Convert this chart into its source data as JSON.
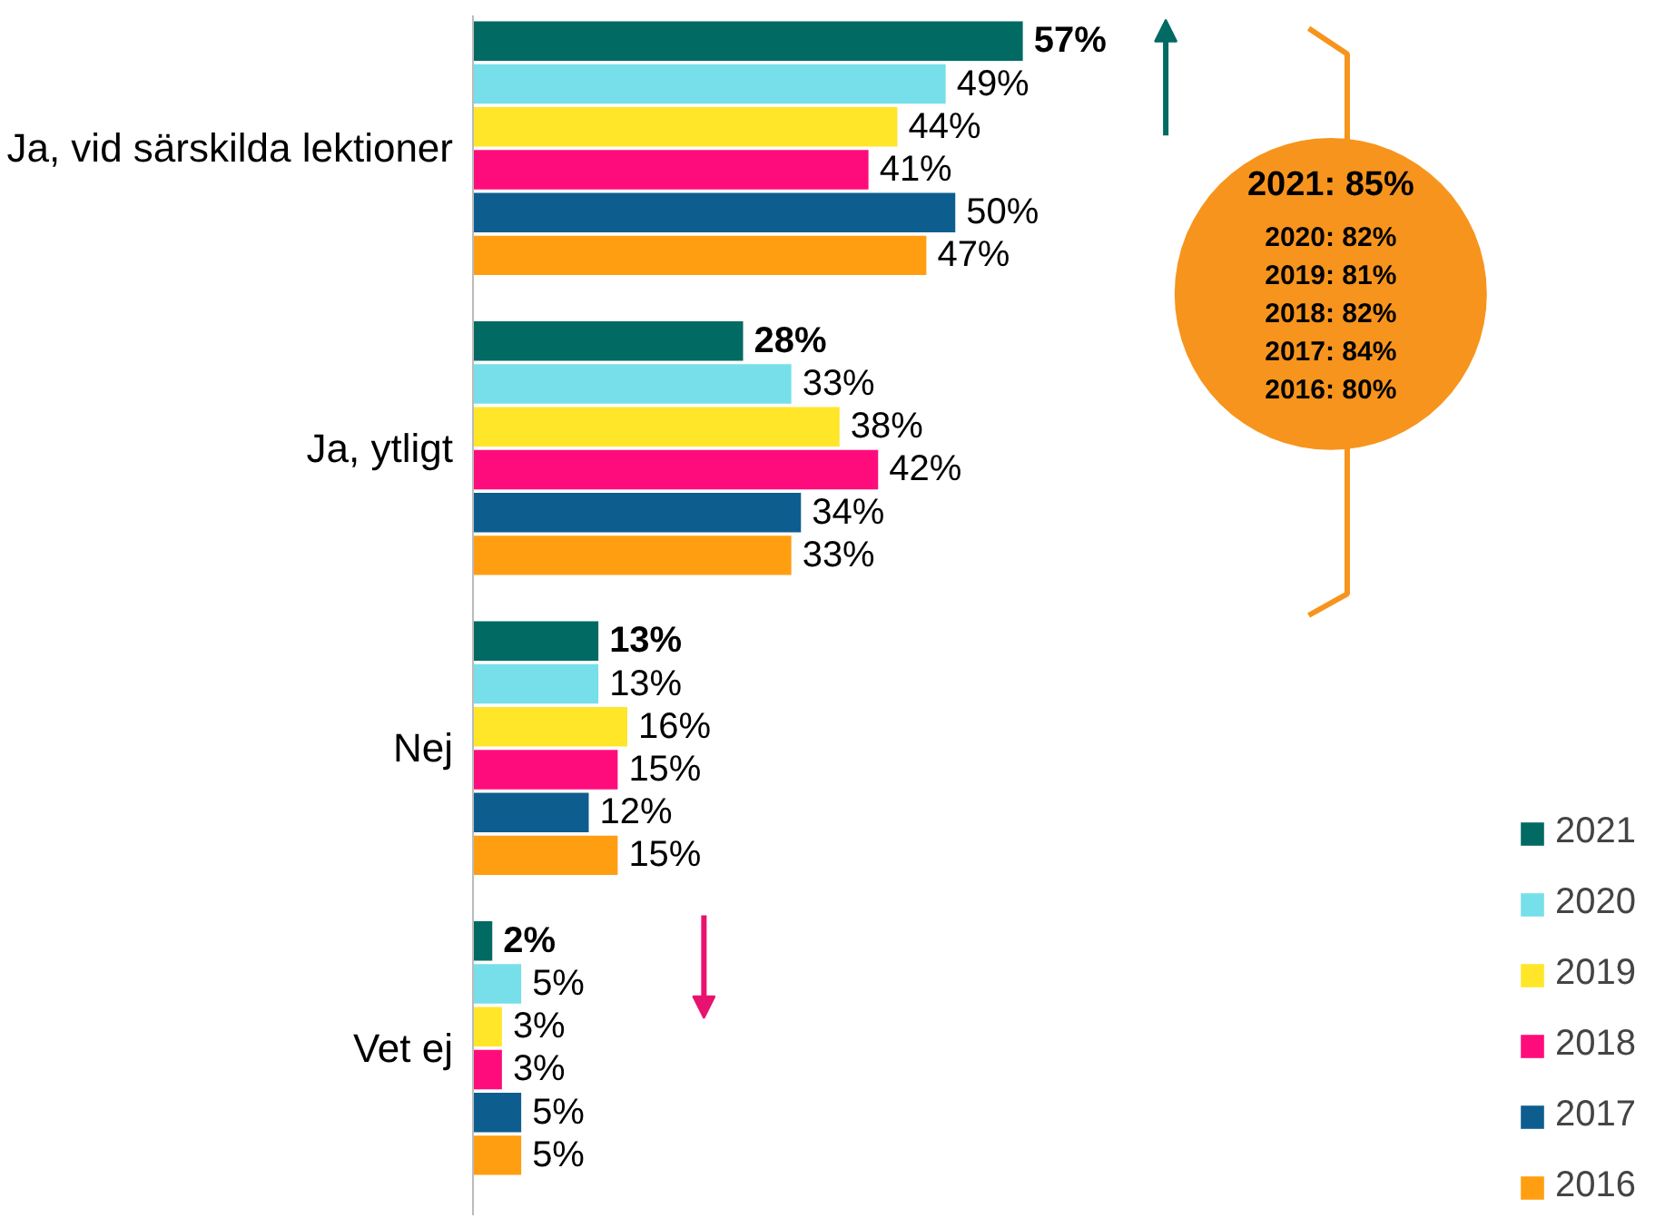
{
  "chart_data": {
    "type": "bar",
    "orientation": "horizontal",
    "categories": [
      "Ja, vid särskilda lektioner",
      "Ja, ytligt",
      "Nej",
      "Vet ej"
    ],
    "series": [
      {
        "name": "2021",
        "color": "#006a63",
        "values": [
          57,
          28,
          13,
          2
        ],
        "value_labels": [
          "57%",
          "28%",
          "13%",
          "2%"
        ]
      },
      {
        "name": "2020",
        "color": "#76dfe9",
        "values": [
          49,
          33,
          13,
          5
        ],
        "value_labels": [
          "49%",
          "33%",
          "13%",
          "5%"
        ]
      },
      {
        "name": "2019",
        "color": "#ffe629",
        "values": [
          44,
          38,
          16,
          3
        ],
        "value_labels": [
          "44%",
          "38%",
          "16%",
          "3%"
        ]
      },
      {
        "name": "2018",
        "color": "#ff0c7c",
        "values": [
          41,
          42,
          15,
          3
        ],
        "value_labels": [
          "41%",
          "42%",
          "15%",
          "3%"
        ]
      },
      {
        "name": "2017",
        "color": "#0d5e8e",
        "values": [
          50,
          34,
          12,
          5
        ],
        "value_labels": [
          "50%",
          "34%",
          "12%",
          "5%"
        ]
      },
      {
        "name": "2016",
        "color": "#ff9e10",
        "values": [
          47,
          33,
          15,
          5
        ],
        "value_labels": [
          "47%",
          "33%",
          "15%",
          "5%"
        ]
      }
    ],
    "annotations": [
      "2021: 85%",
      "2020: 82%",
      "2019: 81%",
      "2018: 82%",
      "2017: 84%",
      "2016: 80%"
    ],
    "legend": "right",
    "grid": false
  }
}
